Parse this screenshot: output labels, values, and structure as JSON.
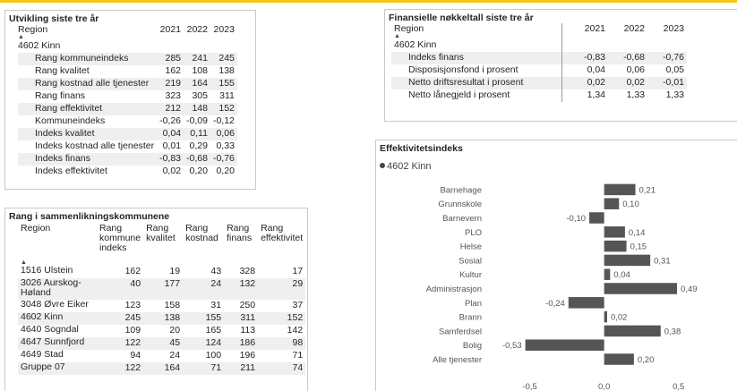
{
  "panel_dev": {
    "title": "Utvikling siste tre år",
    "col_region": "Region",
    "years": [
      "2021",
      "2022",
      "2023"
    ],
    "group": "4602 Kinn",
    "rows": [
      {
        "label": "Rang kommuneindeks",
        "values": [
          "285",
          "241",
          "245"
        ]
      },
      {
        "label": "Rang kvalitet",
        "values": [
          "162",
          "108",
          "138"
        ]
      },
      {
        "label": "Rang kostnad alle tjenester",
        "values": [
          "219",
          "164",
          "155"
        ]
      },
      {
        "label": "Rang finans",
        "values": [
          "323",
          "305",
          "311"
        ]
      },
      {
        "label": "Rang effektivitet",
        "values": [
          "212",
          "148",
          "152"
        ]
      },
      {
        "label": "Kommuneindeks",
        "values": [
          "-0,26",
          "-0,09",
          "-0,12"
        ]
      },
      {
        "label": "Indeks kvalitet",
        "values": [
          "0,04",
          "0,11",
          "0,06"
        ]
      },
      {
        "label": "Indeks kostnad alle tjenester",
        "values": [
          "0,01",
          "0,29",
          "0,33"
        ]
      },
      {
        "label": "Indeks finans",
        "values": [
          "-0,83",
          "-0,68",
          "-0,76"
        ]
      },
      {
        "label": "Indeks effektivitet",
        "values": [
          "0,02",
          "0,20",
          "0,20"
        ]
      }
    ]
  },
  "panel_fin": {
    "title": "Finansielle nøkkeltall siste tre år",
    "col_region": "Region",
    "years": [
      "2021",
      "2022",
      "2023"
    ],
    "group": "4602 Kinn",
    "rows": [
      {
        "label": "Indeks finans",
        "values": [
          "-0,83",
          "-0,68",
          "-0,76"
        ]
      },
      {
        "label": "Disposisjonsfond i prosent",
        "values": [
          "0,04",
          "0,06",
          "0,05"
        ]
      },
      {
        "label": "Netto driftsresultat i prosent",
        "values": [
          "0,02",
          "0,02",
          "-0,01"
        ]
      },
      {
        "label": "Netto lånegjeld i prosent",
        "values": [
          "1,34",
          "1,33",
          "1,33"
        ]
      }
    ]
  },
  "panel_rank": {
    "title": "Rang i sammenlikningskommunene",
    "headers": [
      "Region",
      "Rang kommune indeks",
      "Rang kvalitet",
      "Rang kostnad",
      "Rang finans",
      "Rang effektivitet"
    ],
    "rows": [
      {
        "region": "1516 Ulstein",
        "values": [
          "162",
          "19",
          "43",
          "328",
          "17"
        ]
      },
      {
        "region": "3026 Aurskog-Høland",
        "values": [
          "40",
          "177",
          "24",
          "132",
          "29"
        ]
      },
      {
        "region": "3048 Øvre Eiker",
        "values": [
          "123",
          "158",
          "31",
          "250",
          "37"
        ]
      },
      {
        "region": "4602 Kinn",
        "values": [
          "245",
          "138",
          "155",
          "311",
          "152"
        ]
      },
      {
        "region": "4640 Sogndal",
        "values": [
          "109",
          "20",
          "165",
          "113",
          "142"
        ]
      },
      {
        "region": "4647 Sunnfjord",
        "values": [
          "122",
          "45",
          "124",
          "186",
          "98"
        ]
      },
      {
        "region": "4649 Stad",
        "values": [
          "94",
          "24",
          "100",
          "196",
          "71"
        ]
      },
      {
        "region": "Gruppe 07",
        "values": [
          "122",
          "164",
          "71",
          "211",
          "74"
        ]
      }
    ]
  },
  "panel_eff": {
    "title": "Effektivitetsindeks",
    "legend": "4602 Kinn"
  },
  "chart_data": {
    "type": "bar",
    "orientation": "horizontal",
    "title": "Effektivitetsindeks",
    "legend": [
      "4602 Kinn"
    ],
    "categories": [
      "Barnehage",
      "Grunnskole",
      "Barnevern",
      "PLO",
      "Helse",
      "Sosial",
      "Kultur",
      "Administrasjon",
      "Plan",
      "Brann",
      "Samferdsel",
      "Bolig",
      "Alle tjenester"
    ],
    "values": [
      0.21,
      0.1,
      -0.1,
      0.14,
      0.15,
      0.31,
      0.04,
      0.49,
      -0.24,
      0.02,
      0.38,
      -0.53,
      0.2
    ],
    "value_labels": [
      "0,21",
      "0,10",
      "-0,10",
      "0,14",
      "0,15",
      "0,31",
      "0,04",
      "0,49",
      "-0,24",
      "0,02",
      "0,38",
      "-0,53",
      "0,20"
    ],
    "xlim": [
      -0.6,
      0.55
    ],
    "xticks": [
      -0.5,
      0.0,
      0.5
    ],
    "xtick_labels": [
      "-0,5",
      "0,0",
      "0,5"
    ],
    "bar_color": "#555555"
  }
}
